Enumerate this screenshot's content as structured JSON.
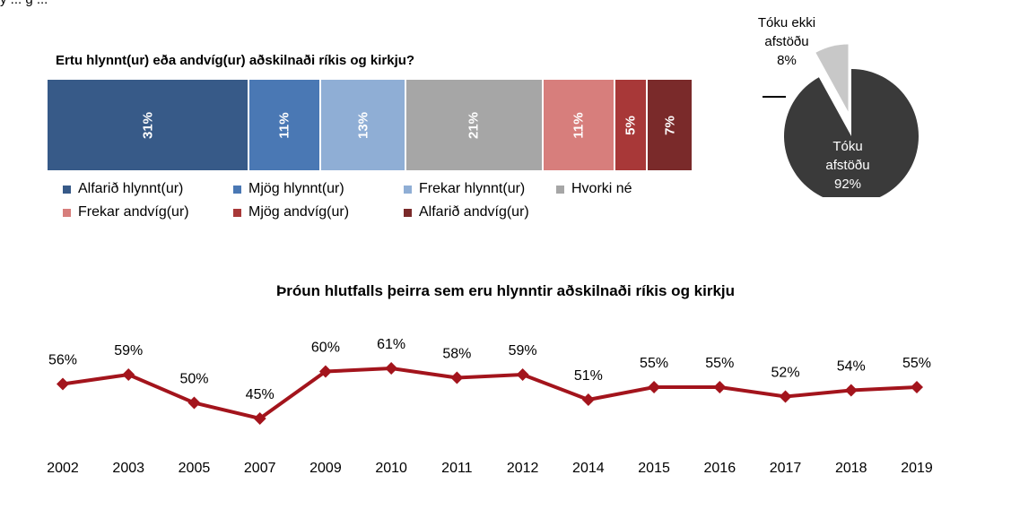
{
  "top_fragment": "y ... g ...",
  "stacked_bar": {
    "title": "Ertu hlynnt(ur) eða andvíg(ur) aðskilnaði ríkis og kirkju?",
    "segments": [
      {
        "name": "Alfarið hlynnt(ur)",
        "value": 31,
        "label": "31%",
        "color": "#375a88"
      },
      {
        "name": "Mjög hlynnt(ur)",
        "value": 11,
        "label": "11%",
        "color": "#4a78b4"
      },
      {
        "name": "Frekar hlynnt(ur)",
        "value": 13,
        "label": "13%",
        "color": "#8faed5"
      },
      {
        "name": "Hvorki né",
        "value": 21,
        "label": "21%",
        "color": "#a6a6a6"
      },
      {
        "name": "Frekar andvíg(ur)",
        "value": 11,
        "label": "11%",
        "color": "#d77e7c"
      },
      {
        "name": "Mjög andvíg(ur)",
        "value": 5,
        "label": "5%",
        "color": "#a83838"
      },
      {
        "name": "Alfarið andvíg(ur)",
        "value": 7,
        "label": "7%",
        "color": "#7a2a2a"
      }
    ]
  },
  "pie": {
    "slices": [
      {
        "label_line1": "Tóku ekki",
        "label_line2": "afstöðu",
        "pct": "8%",
        "value": 8,
        "color": "#c8c8c8"
      },
      {
        "label_line1": "Tóku",
        "label_line2": "afstöðu",
        "pct": "92%",
        "value": 92,
        "color": "#3a3a3a"
      }
    ]
  },
  "arrow_icon": "left-arrow-icon",
  "chart_data": {
    "type": "line",
    "title": "Þróun hlutfalls þeirra sem eru hlynntir aðskilnaði ríkis og kirkju",
    "x": [
      "2002",
      "2003",
      "2005",
      "2007",
      "2009",
      "2010",
      "2011",
      "2012",
      "2014",
      "2015",
      "2016",
      "2017",
      "2018",
      "2019"
    ],
    "values": [
      56,
      59,
      50,
      45,
      60,
      61,
      58,
      59,
      51,
      55,
      55,
      52,
      54,
      55
    ],
    "labels": [
      "56%",
      "59%",
      "50%",
      "45%",
      "60%",
      "61%",
      "58%",
      "59%",
      "51%",
      "55%",
      "55%",
      "52%",
      "54%",
      "55%"
    ],
    "color": "#a3141c",
    "marker": "diamond",
    "grid": false
  }
}
